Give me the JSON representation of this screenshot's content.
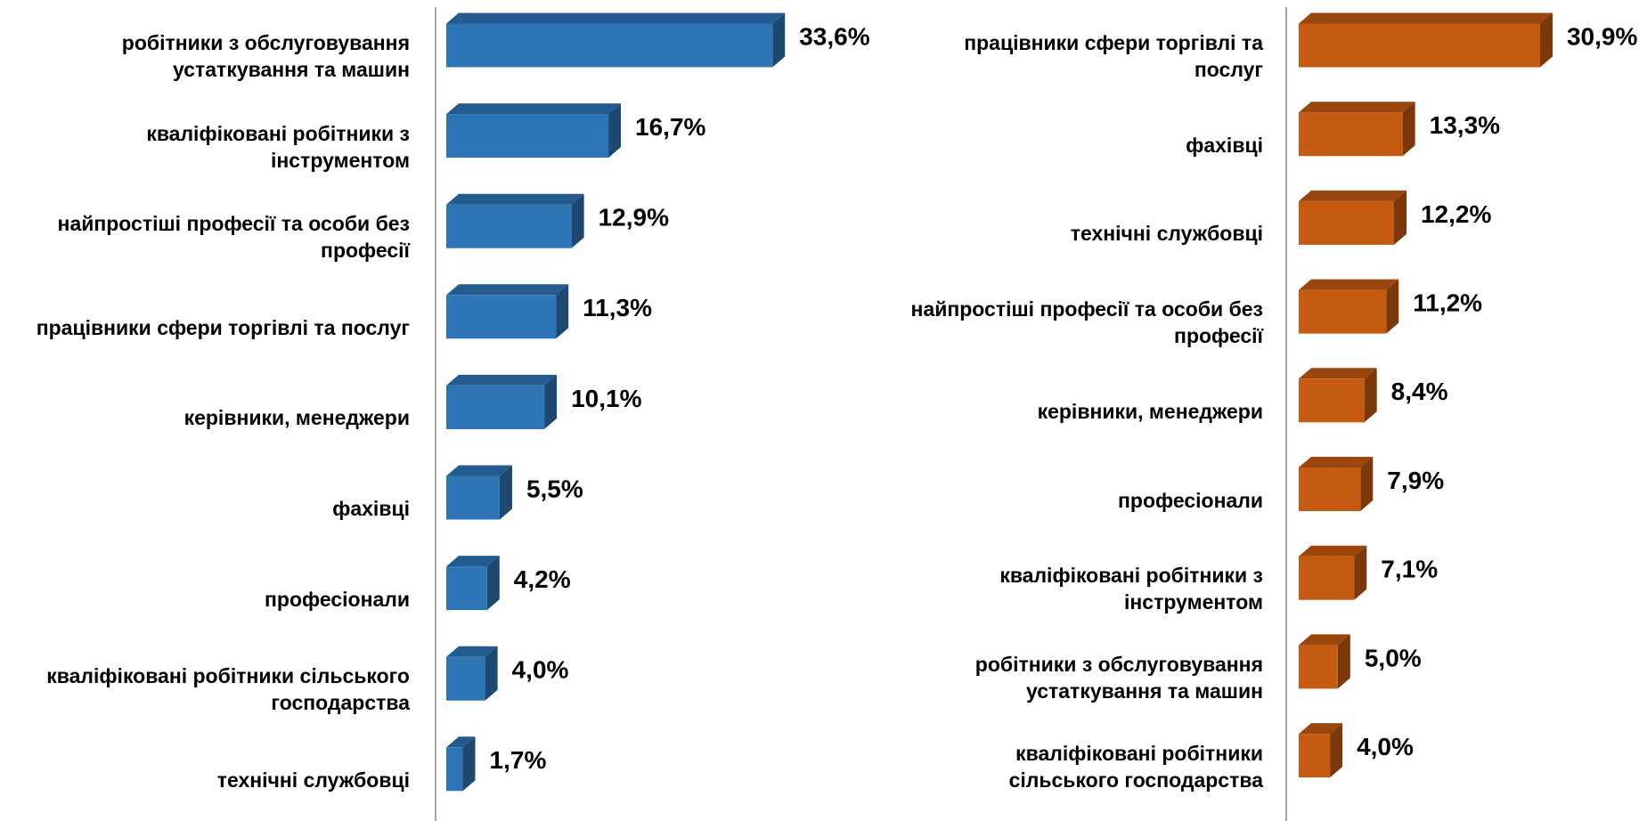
{
  "chart_data": [
    {
      "type": "bar3d",
      "color": "#2e75b6",
      "categories": [
        "робітники з обслуговування устаткування та машин",
        "кваліфіковані робітники з інструментом",
        "найпростіші професії та особи без професії",
        "працівники сфери торгівлі та послуг",
        "керівники, менеджери",
        "фахівці",
        "професіонали",
        "кваліфіковані робітники сільського господарства",
        "технічні службовці"
      ],
      "values": [
        33.6,
        16.7,
        12.9,
        11.3,
        10.1,
        5.5,
        4.2,
        4.0,
        1.7
      ],
      "value_labels": [
        "33,6%",
        "16,7%",
        "12,9%",
        "11,3%",
        "10,1%",
        "5,5%",
        "4,2%",
        "4,0%",
        "1,7%"
      ]
    },
    {
      "type": "bar3d",
      "color": "#c55a11",
      "categories": [
        "працівники сфери торгівлі та послуг",
        "фахівці",
        "технічні службовці",
        "найпростіші професії та особи без професії",
        "керівники, менеджери",
        "професіонали",
        "кваліфіковані робітники з інструментом",
        "робітники з обслуговування устаткування та машин",
        "кваліфіковані робітники сільського господарства"
      ],
      "values": [
        30.9,
        13.3,
        12.2,
        11.2,
        8.4,
        7.9,
        7.1,
        5.0,
        4.0
      ],
      "value_labels": [
        "30,9%",
        "13,3%",
        "12,2%",
        "11,2%",
        "8,4%",
        "7,9%",
        "7,1%",
        "5,0%",
        "4,0%"
      ]
    }
  ]
}
